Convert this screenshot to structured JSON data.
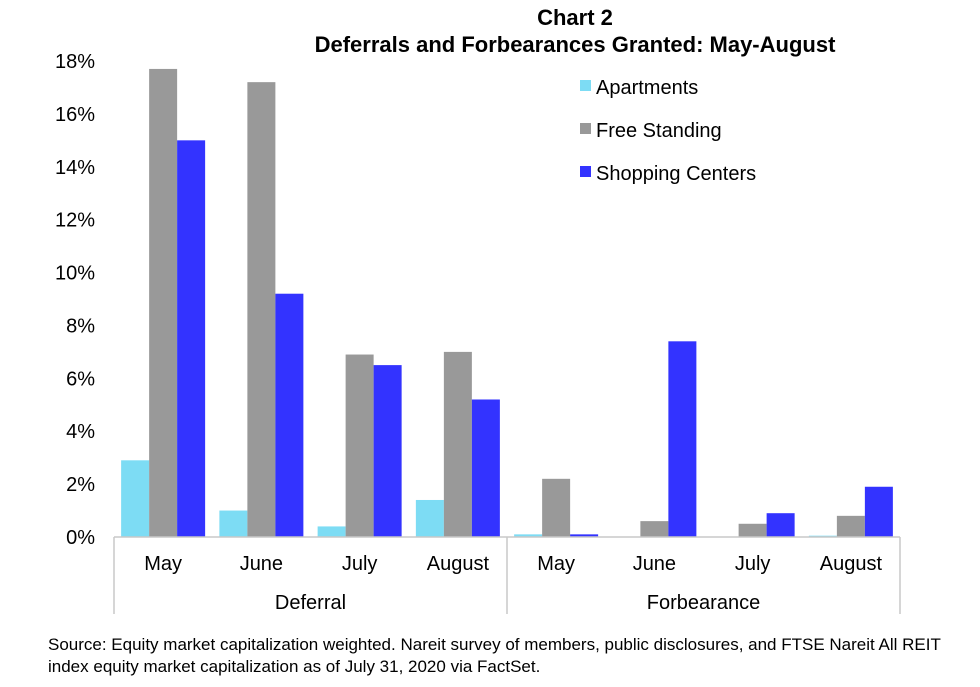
{
  "chart_data": {
    "type": "bar",
    "title": "Chart 2",
    "subtitle": "Deferrals and Forbearances Granted: May-August",
    "groups": [
      "Deferral",
      "Forbearance"
    ],
    "categories": [
      "May",
      "June",
      "July",
      "August",
      "May",
      "June",
      "July",
      "August"
    ],
    "series": [
      {
        "name": "Apartments",
        "color": "#7ddcf4",
        "values": [
          2.9,
          1.0,
          0.4,
          1.4,
          0.1,
          0.0,
          0.0,
          0.05
        ]
      },
      {
        "name": "Free Standing",
        "color": "#999999",
        "values": [
          17.7,
          17.2,
          6.9,
          7.0,
          2.2,
          0.6,
          0.5,
          0.8
        ]
      },
      {
        "name": "Shopping Centers",
        "color": "#3333ff",
        "values": [
          15.0,
          9.2,
          6.5,
          5.2,
          0.1,
          7.4,
          0.9,
          1.9
        ]
      }
    ],
    "ylim": [
      0,
      18
    ],
    "yticks": [
      "0%",
      "2%",
      "4%",
      "6%",
      "8%",
      "10%",
      "12%",
      "14%",
      "16%",
      "18%"
    ],
    "xlabel": "",
    "ylabel": "",
    "grid": false,
    "legend": "top-right"
  },
  "source_note": "Source: Equity market capitalization weighted. Nareit survey of members, public disclosures, and FTSE Nareit All REIT index equity market capitalization as of July 31, 2020 via FactSet."
}
